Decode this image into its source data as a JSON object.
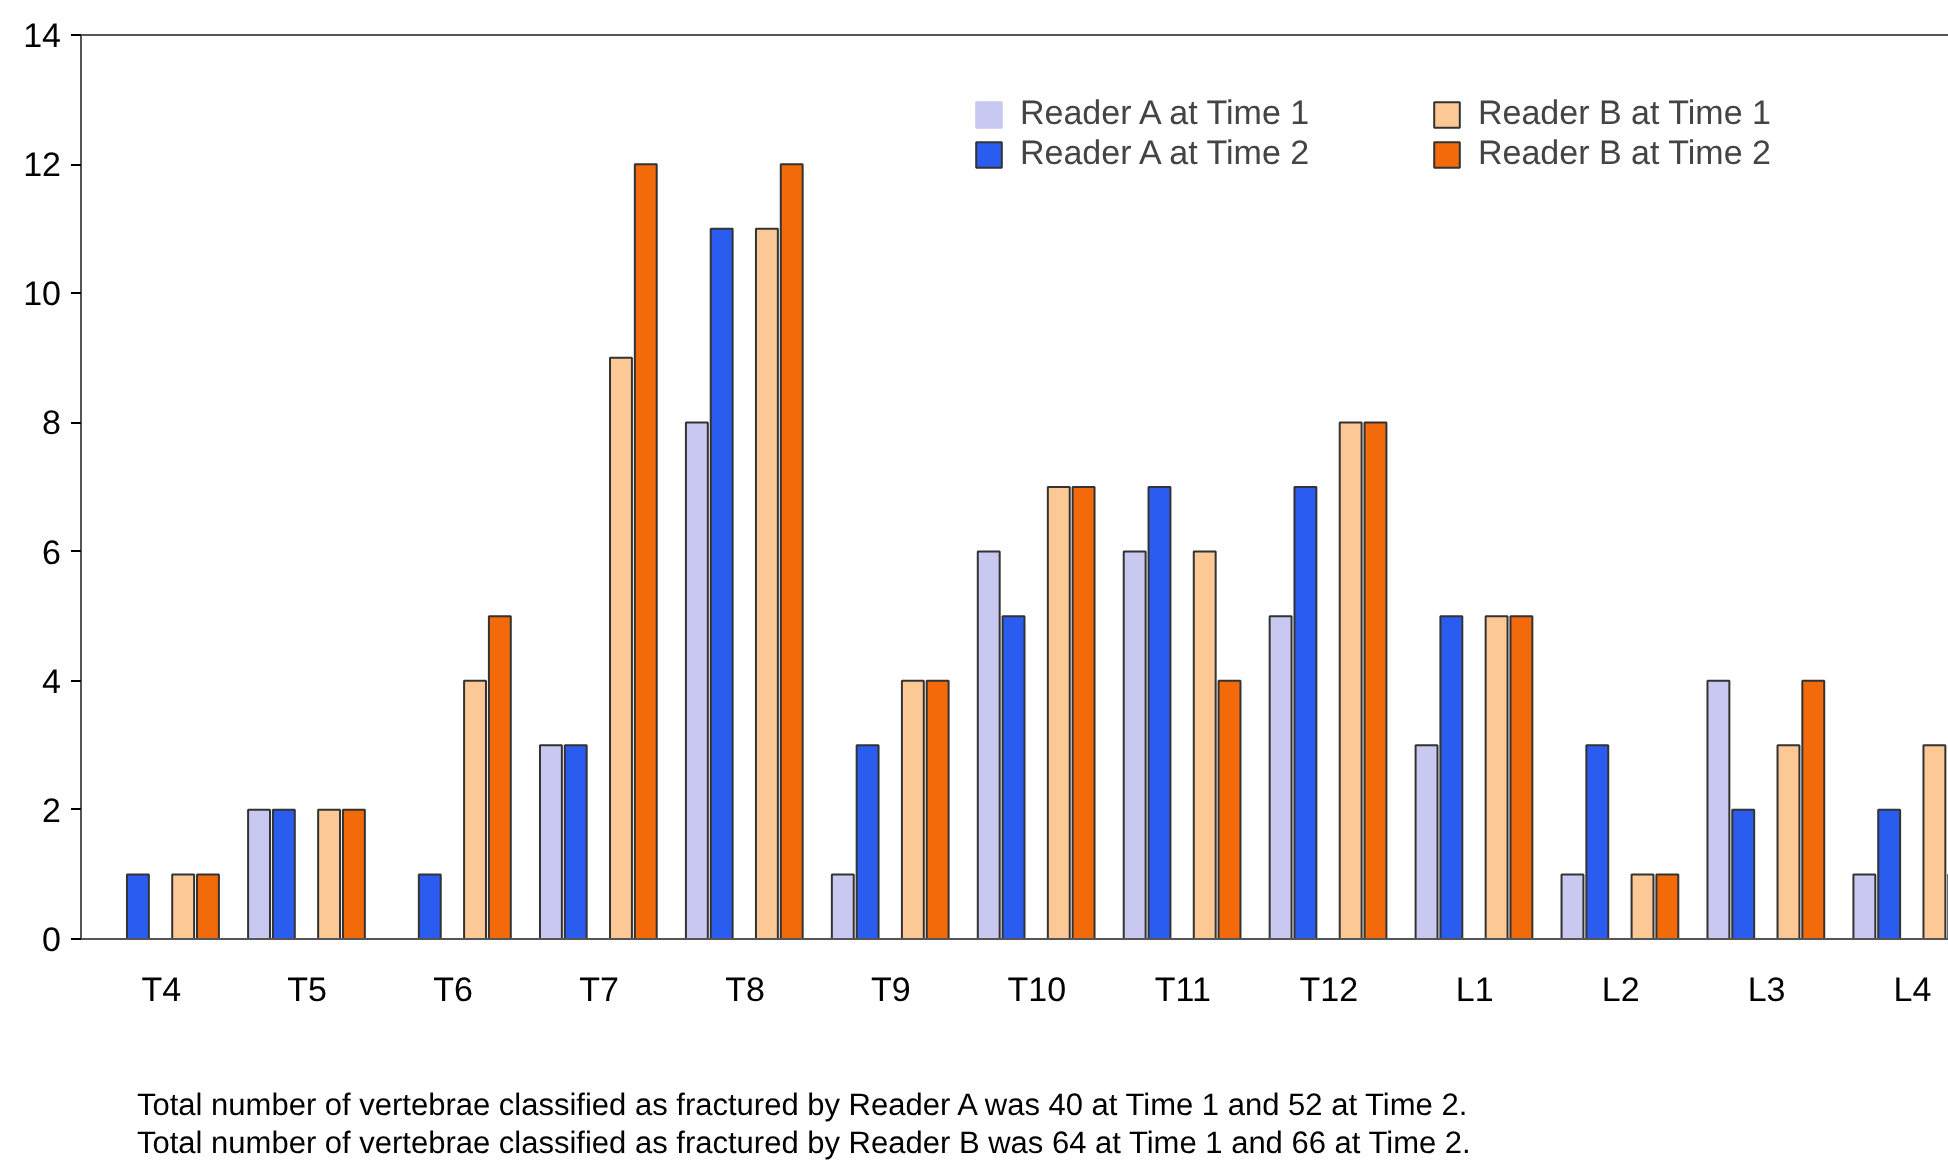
{
  "chart_data": {
    "type": "bar",
    "categories": [
      "T4",
      "T5",
      "T6",
      "T7",
      "T8",
      "T9",
      "T10",
      "T11",
      "T12",
      "L1",
      "L2",
      "L3",
      "L4"
    ],
    "series": [
      {
        "name": "Reader A at Time 1",
        "color": "#c8c8f0",
        "values": [
          0,
          2,
          0,
          3,
          8,
          1,
          6,
          6,
          5,
          3,
          1,
          4,
          1
        ]
      },
      {
        "name": "Reader A at Time 2",
        "color": "#2b5cf0",
        "values": [
          1,
          2,
          1,
          3,
          11,
          3,
          5,
          7,
          7,
          5,
          3,
          2,
          2
        ]
      },
      {
        "name": "Reader B at Time 1",
        "color": "#fcc896",
        "values": [
          1,
          2,
          4,
          9,
          11,
          4,
          7,
          6,
          8,
          5,
          1,
          3,
          3
        ]
      },
      {
        "name": "Reader B at Time 2",
        "color": "#f26a0a",
        "values": [
          1,
          2,
          5,
          12,
          12,
          4,
          7,
          4,
          8,
          5,
          1,
          4,
          1
        ]
      }
    ],
    "ylim": [
      0,
      14
    ],
    "yticks": [
      0,
      2,
      4,
      6,
      8,
      10,
      12,
      14
    ],
    "grid": false,
    "legend": "top right",
    "annotations": [
      "Total number of vertebrae classified as fractured by Reader A was 40 at Time 1 and 52 at Time 2.",
      "Total number of vertebrae classified as fractured by Reader B was 64 at Time 1 and 66 at Time 2."
    ]
  }
}
